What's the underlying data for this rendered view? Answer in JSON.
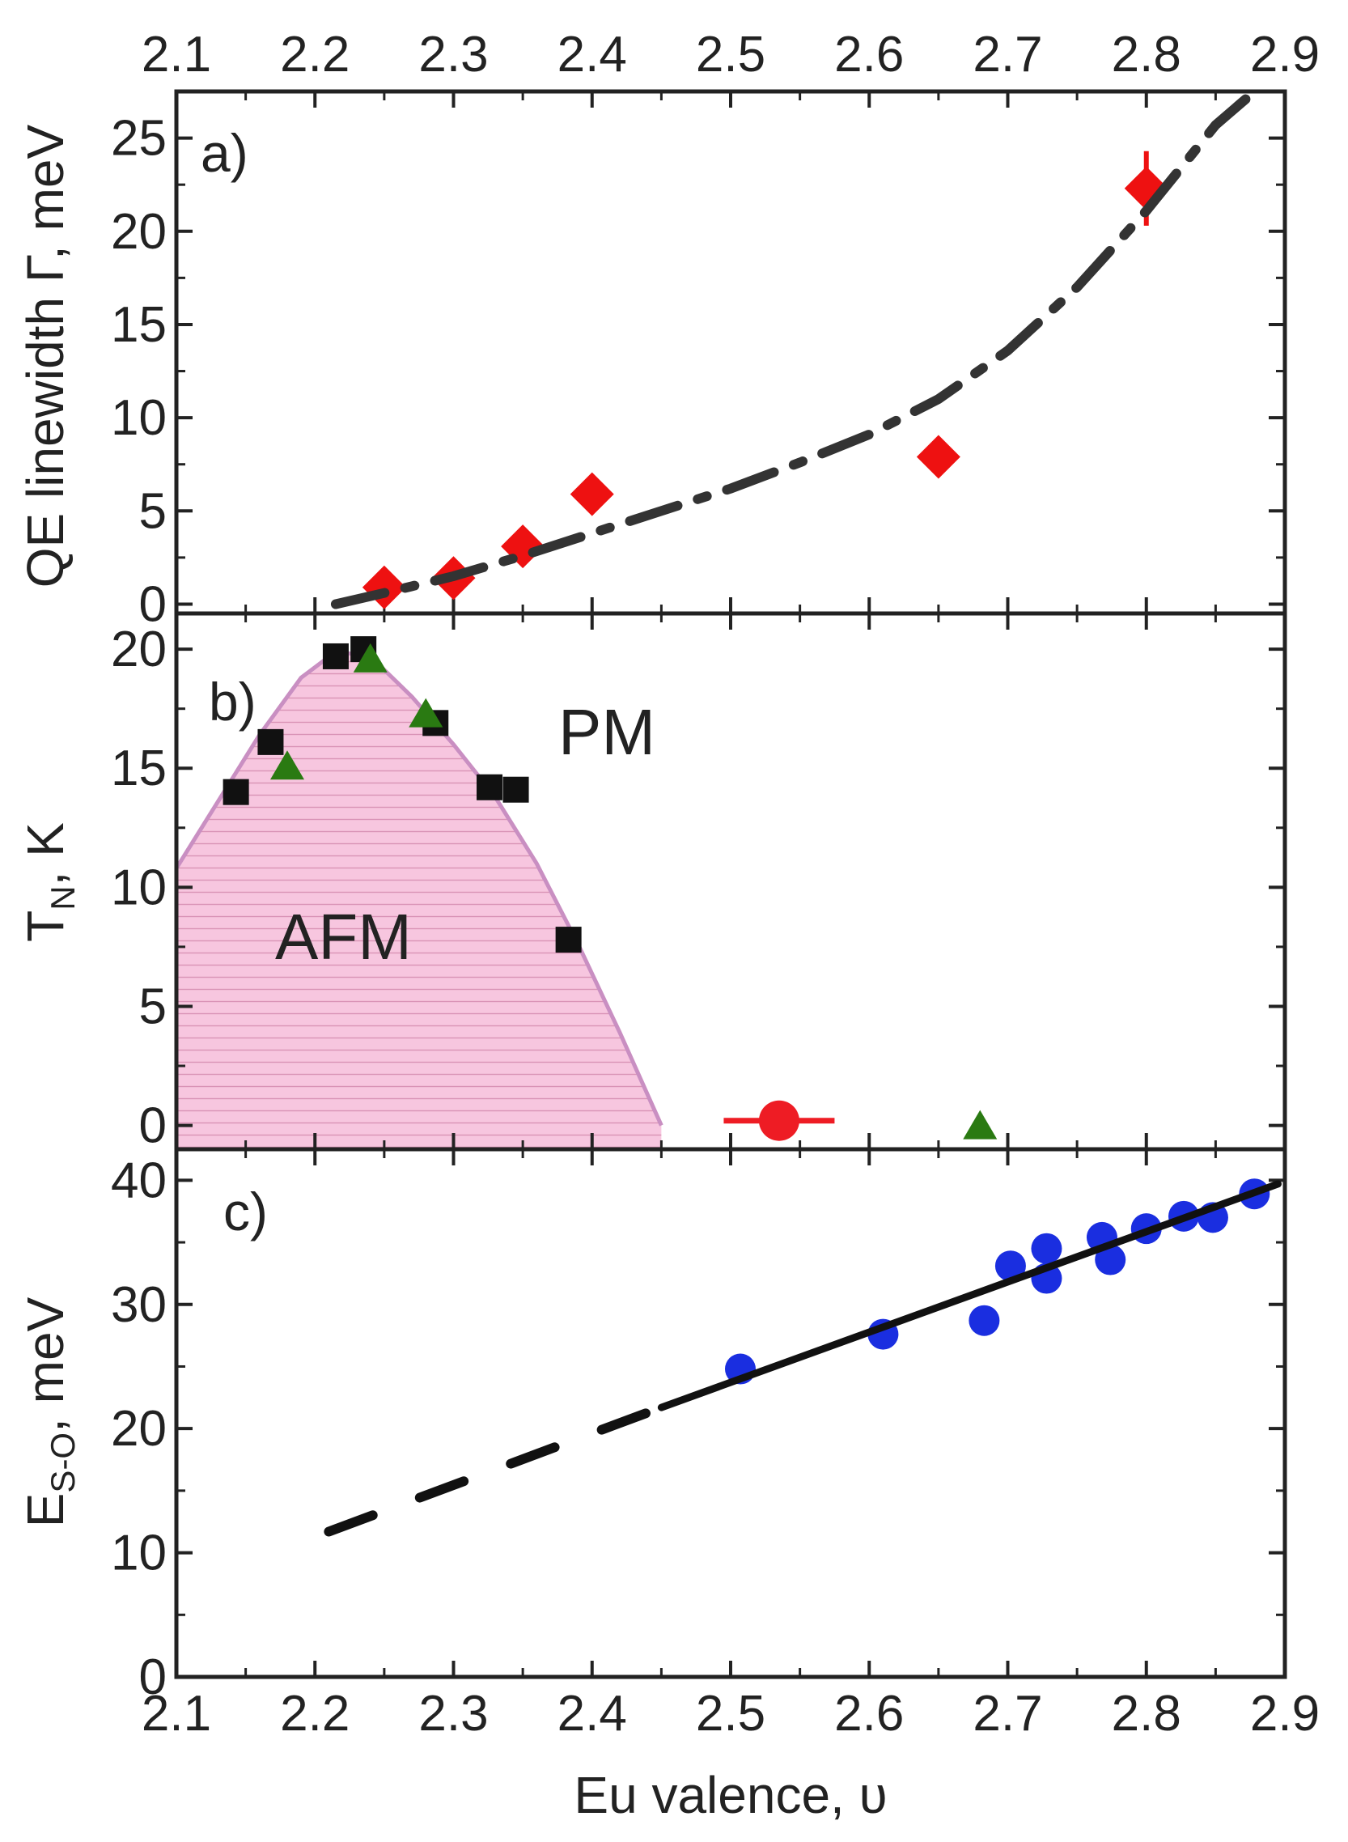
{
  "chart_data": [
    {
      "panel": "a)",
      "type": "scatter",
      "ylabel": "QE linewidth Γ, meV",
      "xlabel": "",
      "top_ticks": [
        "2.1",
        "2.2",
        "2.3",
        "2.4",
        "2.5",
        "2.6",
        "2.7",
        "2.8",
        "2.9"
      ],
      "xlim": [
        2.1,
        2.9
      ],
      "ylim": [
        -0.5,
        27.5
      ],
      "yticks": [
        0,
        5,
        10,
        15,
        20,
        25
      ],
      "series": [
        {
          "name": "QE linewidth",
          "marker": "diamond",
          "color": "#ee1111",
          "points": [
            {
              "x": 2.25,
              "y": 0.9,
              "yerr": 0.6
            },
            {
              "x": 2.3,
              "y": 1.4,
              "yerr": 0.6
            },
            {
              "x": 2.35,
              "y": 3.1,
              "yerr": 0.7
            },
            {
              "x": 2.4,
              "y": 5.9,
              "yerr": 0.8
            },
            {
              "x": 2.65,
              "y": 7.9,
              "yerr": 1.0
            },
            {
              "x": 2.8,
              "y": 22.3,
              "yerr": 2.0
            }
          ]
        },
        {
          "name": "guide (dash-dot)",
          "line": "dashdot",
          "color": "#333333",
          "x": [
            2.215,
            2.25,
            2.3,
            2.35,
            2.4,
            2.45,
            2.5,
            2.55,
            2.6,
            2.65,
            2.7,
            2.75,
            2.8,
            2.85,
            2.875
          ],
          "y": [
            0.0,
            0.6,
            1.5,
            2.6,
            3.8,
            5.0,
            6.2,
            7.6,
            9.1,
            11.0,
            13.6,
            17.0,
            21.1,
            25.7,
            27.3
          ]
        }
      ]
    },
    {
      "panel": "b)",
      "type": "scatter",
      "ylabel": "TN, K",
      "ylabel_main": "T",
      "ylabel_sub": "N",
      "ylabel_rest": ", K",
      "xlim": [
        2.1,
        2.9
      ],
      "ylim": [
        -1,
        21.5
      ],
      "yticks": [
        0,
        5,
        10,
        15,
        20
      ],
      "region_labels": [
        "AFM",
        "PM"
      ],
      "afm_region": {
        "x": [
          2.1,
          2.13,
          2.16,
          2.19,
          2.215,
          2.24,
          2.27,
          2.3,
          2.33,
          2.36,
          2.39,
          2.42,
          2.45
        ],
        "y": [
          10.8,
          13.6,
          16.4,
          18.8,
          19.9,
          19.7,
          18.0,
          16.0,
          13.8,
          11.0,
          7.6,
          3.9,
          0.0
        ]
      },
      "series": [
        {
          "name": "squares",
          "marker": "square",
          "color": "#111111",
          "points": [
            {
              "x": 2.143,
              "y": 14.0
            },
            {
              "x": 2.168,
              "y": 16.1
            },
            {
              "x": 2.215,
              "y": 19.7
            },
            {
              "x": 2.235,
              "y": 20.0
            },
            {
              "x": 2.287,
              "y": 16.9
            },
            {
              "x": 2.326,
              "y": 14.2
            },
            {
              "x": 2.345,
              "y": 14.1
            },
            {
              "x": 2.383,
              "y": 7.8
            }
          ]
        },
        {
          "name": "triangles",
          "marker": "triangle",
          "color": "#2a7a12",
          "points": [
            {
              "x": 2.18,
              "y": 15.1
            },
            {
              "x": 2.24,
              "y": 19.6
            },
            {
              "x": 2.28,
              "y": 17.3
            },
            {
              "x": 2.68,
              "y": 0.0
            }
          ]
        },
        {
          "name": "circle",
          "marker": "circle",
          "color": "#ee1c24",
          "points": [
            {
              "x": 2.535,
              "y": 0.2,
              "xerr": 0.04
            }
          ]
        }
      ]
    },
    {
      "panel": "c)",
      "type": "scatter",
      "ylabel": "ES-O, meV",
      "ylabel_main": "E",
      "ylabel_sub": "S-O",
      "ylabel_rest": ", meV",
      "xlabel": "Eu valence, υ",
      "xticks": [
        "2.1",
        "2.2",
        "2.3",
        "2.4",
        "2.5",
        "2.6",
        "2.7",
        "2.8",
        "2.9"
      ],
      "xlim": [
        2.1,
        2.9
      ],
      "ylim": [
        0,
        42.5
      ],
      "yticks": [
        0,
        10,
        20,
        30,
        40
      ],
      "series": [
        {
          "name": "spin-orbit energies",
          "marker": "circle",
          "color": "#1a2ee0",
          "points": [
            {
              "x": 2.507,
              "y": 24.8
            },
            {
              "x": 2.61,
              "y": 27.6
            },
            {
              "x": 2.683,
              "y": 28.7
            },
            {
              "x": 2.702,
              "y": 33.1
            },
            {
              "x": 2.728,
              "y": 34.5
            },
            {
              "x": 2.728,
              "y": 32.1
            },
            {
              "x": 2.768,
              "y": 35.4
            },
            {
              "x": 2.774,
              "y": 33.6
            },
            {
              "x": 2.8,
              "y": 36.1
            },
            {
              "x": 2.827,
              "y": 37.1
            },
            {
              "x": 2.848,
              "y": 37.0
            },
            {
              "x": 2.878,
              "y": 38.9
            }
          ]
        },
        {
          "name": "linear fit",
          "line": "solid",
          "color": "#111111",
          "x": [
            2.45,
            2.895
          ],
          "y": [
            21.7,
            39.7
          ]
        },
        {
          "name": "extrapolation",
          "line": "dashed",
          "color": "#111111",
          "x": [
            2.21,
            2.45
          ],
          "y": [
            11.7,
            21.7
          ]
        }
      ]
    }
  ]
}
